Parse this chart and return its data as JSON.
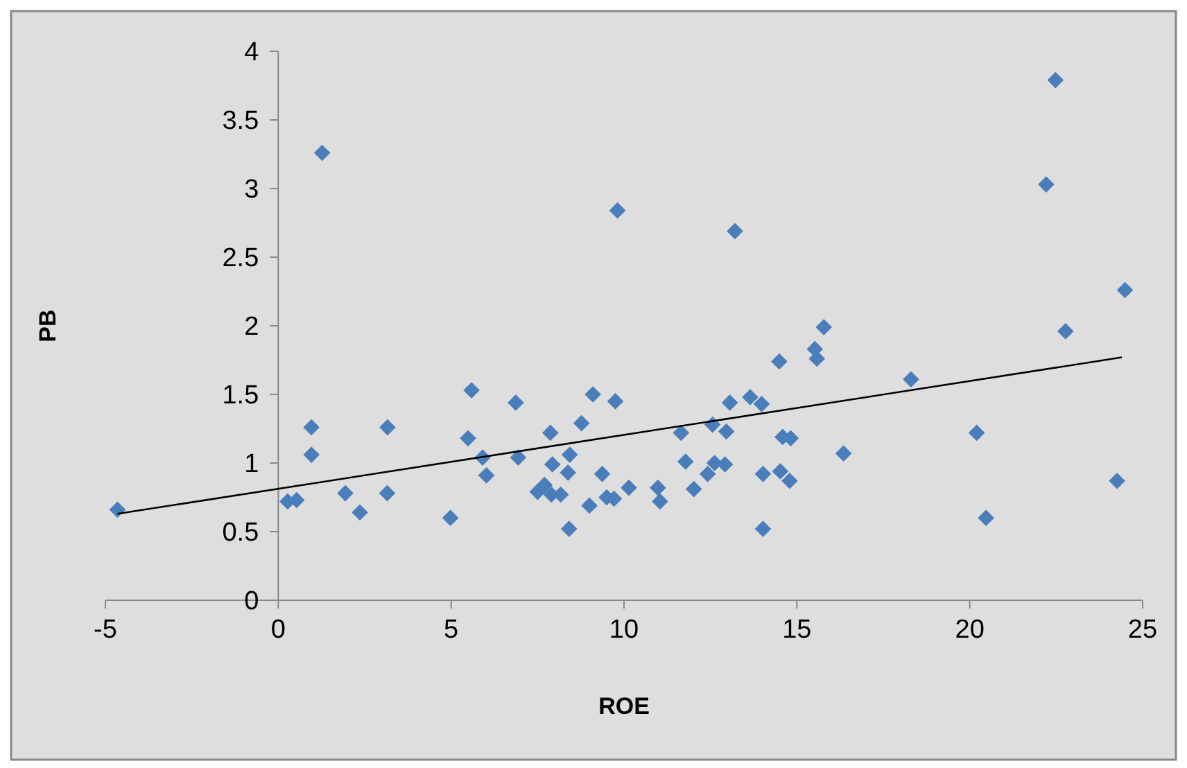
{
  "chart_data": {
    "type": "scatter",
    "xlabel": "ROE",
    "ylabel": "PB",
    "xlim": [
      -5,
      25
    ],
    "xticks": [
      -5,
      0,
      5,
      10,
      15,
      20,
      25
    ],
    "ylim": [
      0,
      4
    ],
    "yticks": [
      0,
      0.5,
      1,
      1.5,
      2,
      2.5,
      3,
      3.5,
      4
    ],
    "grid": false,
    "marker": "diamond",
    "series": [
      {
        "color": "#4a7ebb",
        "x": [
          -4.65,
          0.27,
          0.53,
          1.27,
          0.96,
          0.96,
          1.94,
          2.36,
          3.16,
          3.15,
          4.98,
          5.59,
          5.49,
          5.91,
          6.02,
          6.87,
          6.94,
          7.5,
          7.7,
          7.87,
          7.93,
          7.9,
          8.17,
          8.43,
          8.41,
          8.38,
          8.77,
          9.0,
          9.1,
          9.37,
          9.5,
          9.71,
          9.75,
          9.81,
          10.14,
          10.98,
          11.04,
          11.65,
          11.78,
          12.02,
          12.42,
          12.56,
          12.62,
          12.92,
          12.96,
          13.06,
          13.21,
          13.65,
          13.98,
          14.02,
          14.02,
          14.52,
          14.79,
          14.59,
          14.82,
          14.49,
          15.52,
          15.58,
          15.78,
          16.35,
          18.3,
          20.2,
          20.47,
          22.21,
          22.48,
          22.77,
          24.26,
          24.49
        ],
        "values": [
          0.66,
          0.72,
          0.73,
          3.26,
          1.26,
          1.06,
          0.78,
          0.64,
          1.26,
          0.78,
          0.6,
          1.53,
          1.18,
          1.04,
          0.91,
          1.44,
          1.04,
          0.79,
          0.84,
          1.22,
          0.99,
          0.77,
          0.77,
          1.06,
          0.52,
          0.93,
          1.29,
          0.69,
          1.5,
          0.92,
          0.75,
          0.74,
          1.45,
          2.84,
          0.82,
          0.82,
          0.72,
          1.22,
          1.01,
          0.81,
          0.92,
          1.28,
          1.0,
          0.99,
          1.23,
          1.44,
          2.69,
          1.48,
          1.43,
          0.92,
          0.52,
          0.94,
          0.87,
          1.19,
          1.18,
          1.74,
          1.83,
          1.76,
          1.99,
          1.07,
          1.61,
          1.22,
          0.6,
          3.03,
          3.79,
          1.96,
          0.87,
          2.26
        ]
      },
      {
        "type": "line",
        "color": "#000000",
        "marker": "none",
        "x": [
          -4.65,
          24.4
        ],
        "values": [
          0.63,
          1.77
        ]
      }
    ]
  }
}
